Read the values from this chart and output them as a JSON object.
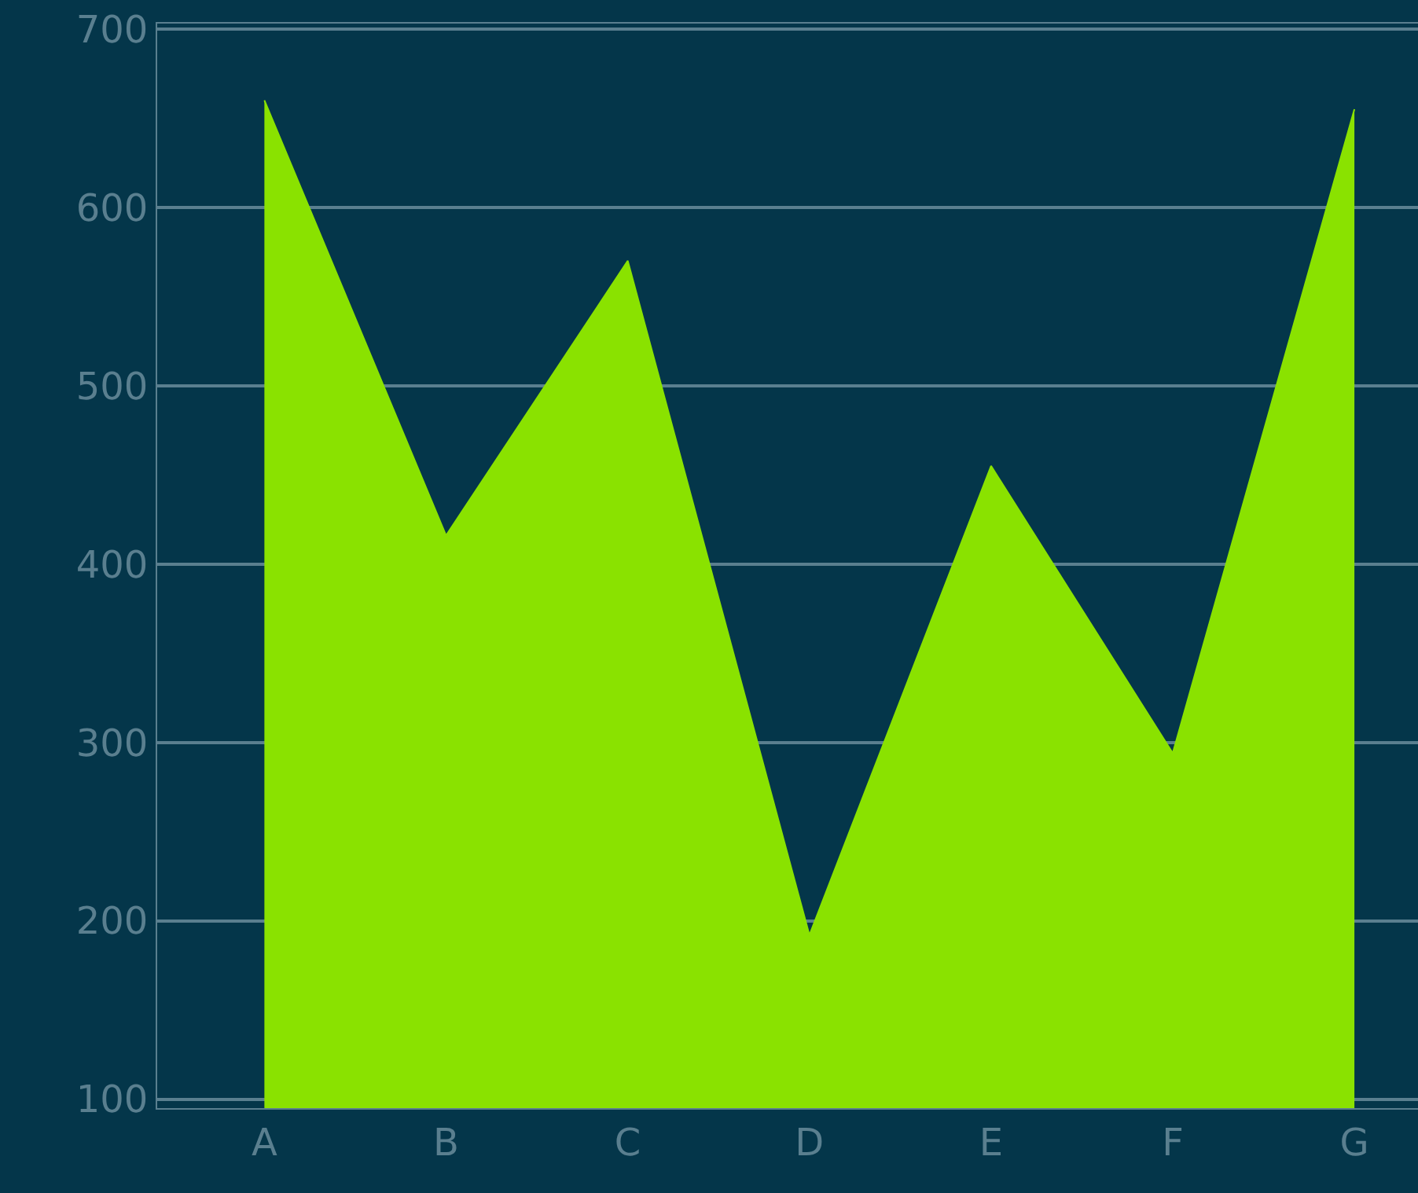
{
  "chart_data": {
    "type": "area",
    "categories": [
      "A",
      "B",
      "C",
      "D",
      "E",
      "F",
      "G"
    ],
    "series": [
      {
        "color": "#8ae200",
        "values": [
          660,
          416,
          570,
          192,
          455,
          294,
          655
        ]
      }
    ],
    "ylim": [
      95,
      703
    ],
    "yticks": [
      100,
      200,
      300,
      400,
      500,
      600,
      700
    ],
    "grid": "y"
  }
}
